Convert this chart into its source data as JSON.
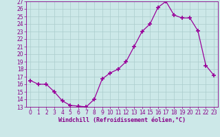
{
  "x": [
    0,
    1,
    2,
    3,
    4,
    5,
    6,
    7,
    8,
    9,
    10,
    11,
    12,
    13,
    14,
    15,
    16,
    17,
    18,
    19,
    20,
    21,
    22,
    23
  ],
  "y": [
    16.5,
    16.0,
    16.0,
    15.0,
    13.8,
    13.2,
    13.1,
    13.0,
    14.0,
    16.7,
    17.5,
    18.0,
    19.0,
    21.0,
    23.0,
    24.0,
    26.2,
    27.0,
    25.2,
    24.8,
    24.8,
    23.1,
    18.5,
    17.2
  ],
  "line_color": "#990099",
  "marker": "+",
  "marker_size": 4,
  "marker_lw": 1.2,
  "bg_color": "#cce8e8",
  "grid_color": "#aacccc",
  "xlabel": "Windchill (Refroidissement éolien,°C)",
  "ylabel": "",
  "ylim": [
    13,
    27
  ],
  "xlim": [
    -0.5,
    23.5
  ],
  "yticks": [
    13,
    14,
    15,
    16,
    17,
    18,
    19,
    20,
    21,
    22,
    23,
    24,
    25,
    26,
    27
  ],
  "xticks": [
    0,
    1,
    2,
    3,
    4,
    5,
    6,
    7,
    8,
    9,
    10,
    11,
    12,
    13,
    14,
    15,
    16,
    17,
    18,
    19,
    20,
    21,
    22,
    23
  ],
  "tick_color": "#880088",
  "label_color": "#880088",
  "tick_fontsize": 5.5,
  "xlabel_fontsize": 6.0
}
